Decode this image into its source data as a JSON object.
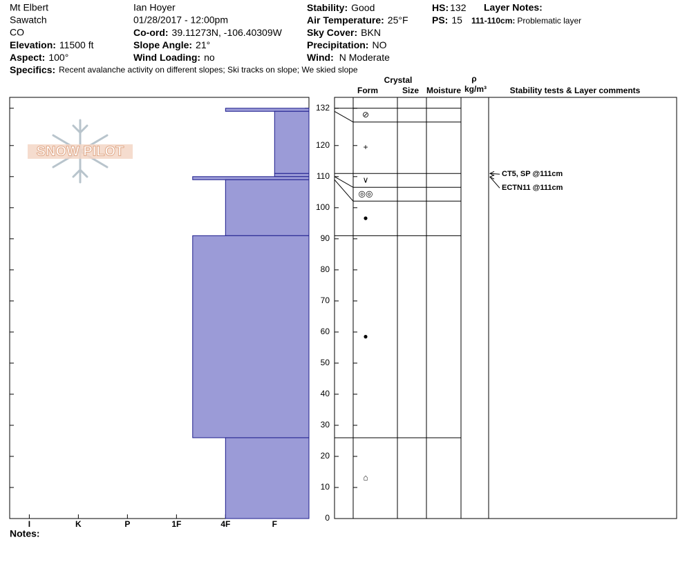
{
  "header": {
    "location": [
      "Mt Elbert",
      "Sawatch",
      "CO"
    ],
    "observer": "Ian Hoyer",
    "datetime": "01/28/2017 - 12:00pm",
    "fields": [
      {
        "label": "Elevation:",
        "value": "11500 ft"
      },
      {
        "label": "Aspect:",
        "value": "100°"
      },
      {
        "label": "Co-ord:",
        "value": "39.11273N, -106.40309W"
      },
      {
        "label": "Slope Angle:",
        "value": "21°"
      },
      {
        "label": "Wind Loading:",
        "value": "no"
      },
      {
        "label": "Stability:",
        "value": "Good"
      },
      {
        "label": "Air Temperature:",
        "value": "25°F"
      },
      {
        "label": "Sky Cover:",
        "value": "BKN"
      },
      {
        "label": "Precipitation:",
        "value": "NO"
      },
      {
        "label": "Wind:",
        "value": "N Moderate"
      },
      {
        "label": "HS:",
        "value": "132"
      },
      {
        "label": "PS:",
        "value": "15"
      }
    ],
    "layer_notes": {
      "title": "Layer Notes:",
      "depth": "111-110cm:",
      "text": "Problematic layer"
    },
    "specifics": {
      "label": "Specifics:",
      "text": "Recent avalanche activity on different slopes;  Ski tracks on slope;  We skied slope"
    },
    "notes": "Notes:",
    "logo": "SNOW PILOT"
  },
  "chart_data": {
    "type": "snow-profile",
    "columns": {
      "crystal": "Crystal",
      "form": "Form",
      "size": "Size",
      "moisture": "Moisture",
      "rho": "ρ",
      "density": "kg/m³",
      "comments": "Stability tests & Layer comments"
    },
    "ylim": [
      0,
      135.5
    ],
    "yticks": [
      0,
      10,
      20,
      30,
      40,
      50,
      60,
      70,
      80,
      90,
      100,
      110,
      120,
      132
    ],
    "xlim": [
      0.3,
      6.4
    ],
    "xticks": [
      {
        "value": 6,
        "label": "I"
      },
      {
        "value": 5,
        "label": "K"
      },
      {
        "value": 4,
        "label": "P"
      },
      {
        "value": 3,
        "label": "1F"
      },
      {
        "value": 2,
        "label": "4F"
      },
      {
        "value": 1,
        "label": "F"
      }
    ],
    "color": "#9b9bd7",
    "edge_color": "#1c1c8c",
    "layers": [
      {
        "top": 132,
        "bottom": 131,
        "hardness": 2,
        "form": "⊘"
      },
      {
        "top": 131,
        "bottom": 111,
        "hardness": 1,
        "form": "+"
      },
      {
        "top": 111,
        "bottom": 110,
        "hardness": 1,
        "form": "∨"
      },
      {
        "top": 110,
        "bottom": 109,
        "hardness": 2.67,
        "form": "◎◎"
      },
      {
        "top": 109,
        "bottom": 91,
        "hardness": 2,
        "form": "●"
      },
      {
        "top": 91,
        "bottom": 26,
        "hardness": 2.67,
        "form": "●"
      },
      {
        "top": 26,
        "bottom": 0,
        "hardness": 2,
        "form": "⌂"
      }
    ],
    "tests": [
      {
        "label": "CT5, SP @111cm",
        "depth": 111
      },
      {
        "label": "ECTN11 @111cm",
        "depth": 111
      }
    ]
  }
}
